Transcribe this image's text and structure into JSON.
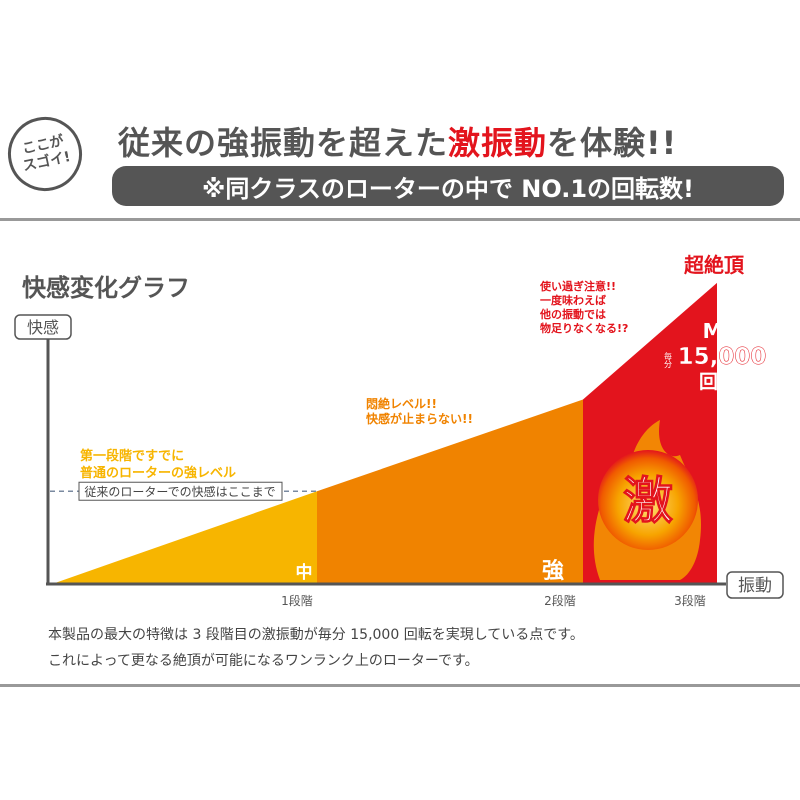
{
  "header": {
    "badge": "ここが\nスゴイ!",
    "headline_pre": "従来の強振動を超えた",
    "headline_red": "激振動",
    "headline_post": "を体験!!",
    "subheadline": "※同クラスのローターの中で NO.1の回転数!"
  },
  "colors": {
    "yellow": "#f7b500",
    "orange": "#f08300",
    "red": "#e3141d",
    "gray": "#555555"
  },
  "chart_data": {
    "type": "area",
    "title": "快感変化グラフ",
    "ylabel": "快感",
    "xlabel": "振動",
    "categories": [
      "0",
      "1段階",
      "2段階",
      "3段階"
    ],
    "tick_labels": [
      "1段階",
      "2段階",
      "3段階"
    ],
    "relative_levels": [
      0,
      0.37,
      0.74,
      1.21
    ],
    "segment_labels": [
      "中",
      "強",
      "激"
    ],
    "reference_line": {
      "level": 0.37,
      "label": "従来のローターでの快感はここまで"
    },
    "annotations": {
      "stage1": [
        "第一段階ですでに",
        "普通のローターの強レベル"
      ],
      "stage2": [
        "悶絶レベル!!",
        "快感が止まらない!!"
      ],
      "stage3": [
        "使い過ぎ注意!!",
        "一度味わえば",
        "他の振動では",
        "物足りなくなる!?"
      ],
      "peak": "超絶頂",
      "max_label": "MAX",
      "per_minute": "毎分",
      "max_value": "15,000",
      "max_unit": "回転"
    }
  },
  "description": [
    "本製品の最大の特徴は 3 段階目の激振動が毎分 15,000 回転を実現している点です。",
    "これによって更なる絶頂が可能になるワンランク上のローターです。"
  ]
}
